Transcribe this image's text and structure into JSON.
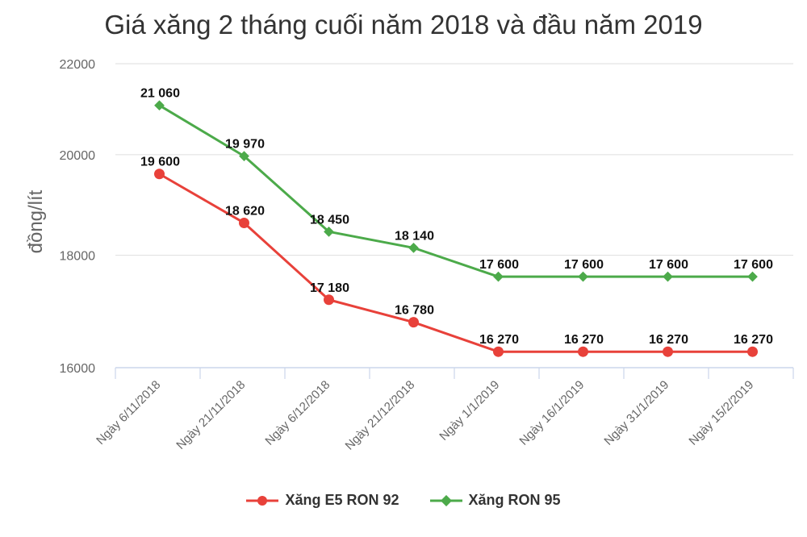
{
  "chart_data": {
    "type": "line",
    "title": "Giá xăng 2 tháng cuối năm 2018 và đầu năm 2019",
    "xlabel": "",
    "ylabel": "đồng/lít",
    "ylim": [
      16000,
      22000
    ],
    "yscale": "log",
    "yticks": [
      16000,
      18000,
      20000,
      22000
    ],
    "grid": true,
    "legend_position": "bottom",
    "categories": [
      "Ngày 6/11/2018",
      "Ngày 21/11/2018",
      "Ngày 6/12/2018",
      "Ngày 21/12/2018",
      "Ngày 1/1/2019",
      "Ngày 16/1/2019",
      "Ngày 31/1/2019",
      "Ngày 15/2/2019"
    ],
    "series": [
      {
        "name": "Xăng E5 RON 92",
        "color": "#e8413a",
        "marker": "circle",
        "values": [
          19600,
          18620,
          17180,
          16780,
          16270,
          16270,
          16270,
          16270
        ],
        "labels": [
          "19 600",
          "18 620",
          "17 180",
          "16 780",
          "16 270",
          "16 270",
          "16 270",
          "16 270"
        ]
      },
      {
        "name": "Xăng RON 95",
        "color": "#4caa4a",
        "marker": "diamond",
        "values": [
          21060,
          19970,
          18450,
          18140,
          17600,
          17600,
          17600,
          17600
        ],
        "labels": [
          "21 060",
          "19 970",
          "18 450",
          "18 140",
          "17 600",
          "17 600",
          "17 600",
          "17 600"
        ]
      }
    ]
  },
  "legend": {
    "items": [
      {
        "label": "Xăng E5 RON 92"
      },
      {
        "label": "Xăng RON 95"
      }
    ]
  }
}
